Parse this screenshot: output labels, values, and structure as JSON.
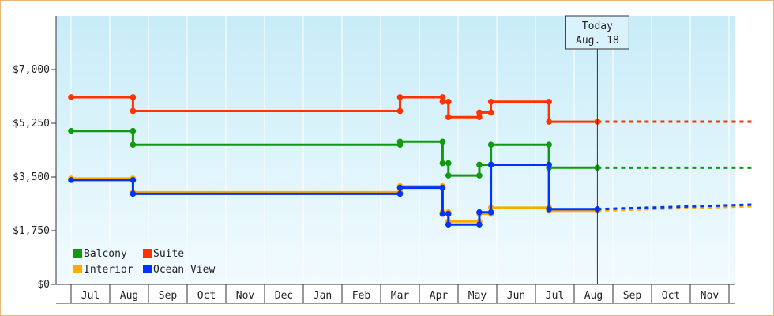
{
  "chart_data": {
    "type": "line",
    "step": true,
    "yticks": [
      "$0",
      "$1,750",
      "$3,500",
      "$5,250",
      "$7,000"
    ],
    "ylim": [
      0,
      8750
    ],
    "months": [
      "Jul",
      "Aug",
      "Sep",
      "Oct",
      "Nov",
      "Dec",
      "Jan",
      "Feb",
      "Mar",
      "Apr",
      "May",
      "Jun",
      "Jul",
      "Aug",
      "Sep",
      "Oct",
      "Nov"
    ],
    "grid": true,
    "legend_position": "bottom-left",
    "today": {
      "label": "Today",
      "date": "Aug. 18",
      "x": 13.6
    },
    "series": [
      {
        "name": "Suite",
        "color": "#ff3300",
        "points": [
          [
            0.0,
            6100
          ],
          [
            1.6,
            6100
          ],
          [
            1.6,
            5650
          ],
          [
            8.5,
            5650
          ],
          [
            8.5,
            6100
          ],
          [
            9.6,
            6100
          ],
          [
            9.6,
            5950
          ],
          [
            9.75,
            5950
          ],
          [
            9.75,
            5450
          ],
          [
            10.55,
            5450
          ],
          [
            10.55,
            5600
          ],
          [
            10.85,
            5600
          ],
          [
            10.85,
            5950
          ],
          [
            12.35,
            5950
          ],
          [
            12.35,
            5300
          ],
          [
            13.6,
            5300
          ]
        ],
        "forecast": [
          [
            13.6,
            5300
          ],
          [
            17.6,
            5300
          ]
        ]
      },
      {
        "name": "Balcony",
        "color": "#119911",
        "points": [
          [
            0.0,
            5000
          ],
          [
            1.6,
            5000
          ],
          [
            1.6,
            4550
          ],
          [
            8.5,
            4550
          ],
          [
            8.5,
            4650
          ],
          [
            9.6,
            4650
          ],
          [
            9.6,
            3950
          ],
          [
            9.75,
            3950
          ],
          [
            9.75,
            3550
          ],
          [
            10.55,
            3550
          ],
          [
            10.55,
            3900
          ],
          [
            10.85,
            3900
          ],
          [
            10.85,
            4550
          ],
          [
            12.35,
            4550
          ],
          [
            12.35,
            3800
          ],
          [
            13.6,
            3800
          ]
        ],
        "forecast": [
          [
            13.6,
            3800
          ],
          [
            17.6,
            3800
          ]
        ]
      },
      {
        "name": "Interior",
        "color": "#ffaa00",
        "points": [
          [
            0.0,
            3450
          ],
          [
            1.6,
            3450
          ],
          [
            1.6,
            3000
          ],
          [
            8.5,
            3000
          ],
          [
            8.5,
            3200
          ],
          [
            9.6,
            3200
          ],
          [
            9.6,
            2350
          ],
          [
            9.75,
            2350
          ],
          [
            9.75,
            2050
          ],
          [
            10.55,
            2050
          ],
          [
            10.55,
            2300
          ],
          [
            10.85,
            2300
          ],
          [
            10.85,
            2500
          ],
          [
            12.35,
            2500
          ],
          [
            12.35,
            2400
          ],
          [
            13.6,
            2400
          ]
        ],
        "forecast": [
          [
            13.6,
            2400
          ],
          [
            17.6,
            2550
          ]
        ]
      },
      {
        "name": "Ocean View",
        "color": "#0033ff",
        "points": [
          [
            0.0,
            3400
          ],
          [
            1.6,
            3400
          ],
          [
            1.6,
            2950
          ],
          [
            8.5,
            2950
          ],
          [
            8.5,
            3150
          ],
          [
            9.6,
            3150
          ],
          [
            9.6,
            2300
          ],
          [
            9.75,
            2300
          ],
          [
            9.75,
            1950
          ],
          [
            10.55,
            1950
          ],
          [
            10.55,
            2350
          ],
          [
            10.85,
            2350
          ],
          [
            10.85,
            3900
          ],
          [
            12.35,
            3900
          ],
          [
            12.35,
            2450
          ],
          [
            13.6,
            2450
          ]
        ],
        "forecast": [
          [
            13.6,
            2450
          ],
          [
            17.6,
            2600
          ]
        ]
      }
    ],
    "legend": [
      {
        "name": "Balcony",
        "color": "#119911"
      },
      {
        "name": "Suite",
        "color": "#ff3300"
      },
      {
        "name": "Interior",
        "color": "#ffaa00"
      },
      {
        "name": "Ocean View",
        "color": "#0033ff"
      }
    ]
  }
}
